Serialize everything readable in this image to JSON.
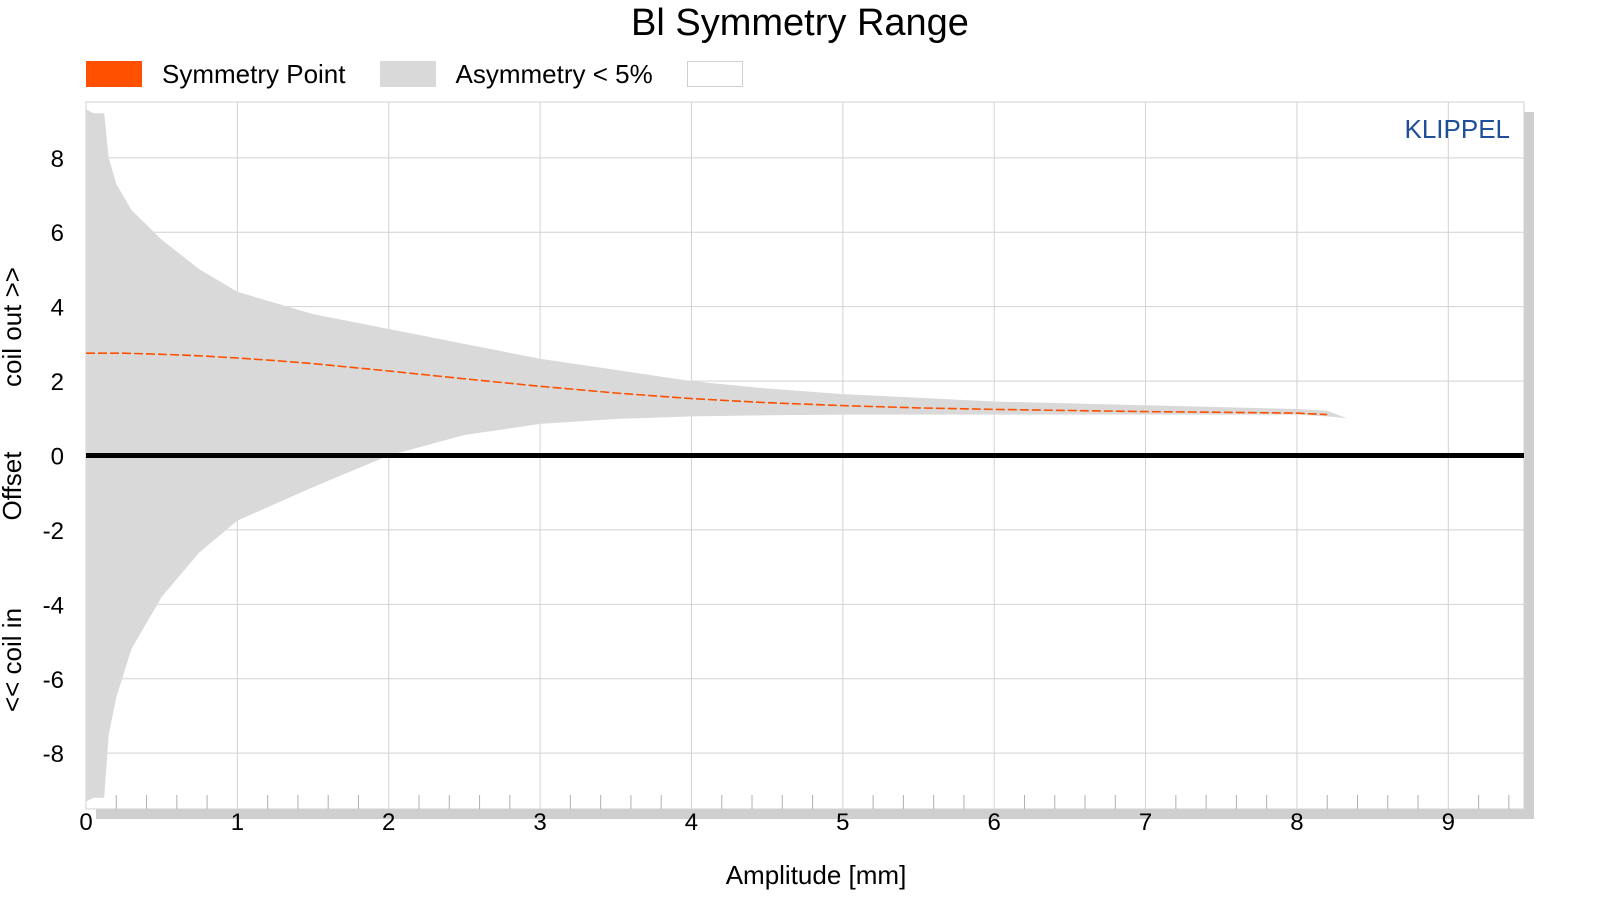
{
  "chart_data": {
    "type": "area",
    "title": "Bl Symmetry Range",
    "xlabel": "Amplitude [mm]",
    "ylabel_parts": [
      "<< coil in",
      "Offset",
      "coil out >>"
    ],
    "watermark": "KLIPPEL",
    "xlim": [
      0,
      9.5
    ],
    "ylim": [
      -9.5,
      9.5
    ],
    "xticks": [
      "0",
      "1",
      "2",
      "3",
      "4",
      "5",
      "6",
      "7",
      "8",
      "9"
    ],
    "yticks": [
      "8",
      "6",
      "4",
      "2",
      "0",
      "-2",
      "-4",
      "-6",
      "-8"
    ],
    "grid": true,
    "legend_position": "top-left",
    "legend": [
      {
        "name": "Symmetry Point",
        "color": "#ff5000"
      },
      {
        "name": "Asymmetry < 5%",
        "color": "#d9d9d9"
      },
      {
        "name": "",
        "color": "#ffffff"
      }
    ],
    "series": [
      {
        "name": "Asymmetry < 5%",
        "kind": "band",
        "color": "#d9d9d9",
        "x": [
          0.0,
          0.05,
          0.12,
          0.15,
          0.2,
          0.3,
          0.5,
          0.75,
          1.0,
          1.5,
          2.0,
          2.5,
          3.0,
          3.5,
          4.0,
          4.5,
          5.0,
          5.5,
          6.0,
          6.5,
          7.0,
          7.5,
          8.0,
          8.2,
          8.33
        ],
        "upper": [
          9.3,
          9.2,
          9.2,
          8.0,
          7.3,
          6.6,
          5.8,
          5.0,
          4.4,
          3.8,
          3.4,
          3.0,
          2.6,
          2.3,
          2.0,
          1.8,
          1.65,
          1.55,
          1.45,
          1.4,
          1.35,
          1.3,
          1.25,
          1.2,
          1.0
        ],
        "lower": [
          -9.3,
          -9.2,
          -9.2,
          -7.5,
          -6.5,
          -5.2,
          -3.8,
          -2.6,
          -1.75,
          -0.85,
          0.0,
          0.55,
          0.85,
          0.98,
          1.05,
          1.08,
          1.1,
          1.1,
          1.1,
          1.1,
          1.1,
          1.1,
          1.1,
          1.05,
          1.0
        ]
      },
      {
        "name": "Symmetry Point",
        "kind": "line",
        "color": "#ff5000",
        "x": [
          0.0,
          0.25,
          0.5,
          0.75,
          1.0,
          1.25,
          1.5,
          1.75,
          2.0,
          2.5,
          3.0,
          3.5,
          4.0,
          4.5,
          5.0,
          5.5,
          6.0,
          6.5,
          7.0,
          7.5,
          8.0,
          8.2
        ],
        "y": [
          2.75,
          2.75,
          2.72,
          2.68,
          2.62,
          2.55,
          2.47,
          2.37,
          2.27,
          2.06,
          1.86,
          1.68,
          1.53,
          1.42,
          1.34,
          1.28,
          1.24,
          1.21,
          1.18,
          1.16,
          1.14,
          1.1
        ]
      },
      {
        "name": "",
        "kind": "hline",
        "color": "#000000",
        "y": [
          0.0
        ]
      }
    ]
  }
}
